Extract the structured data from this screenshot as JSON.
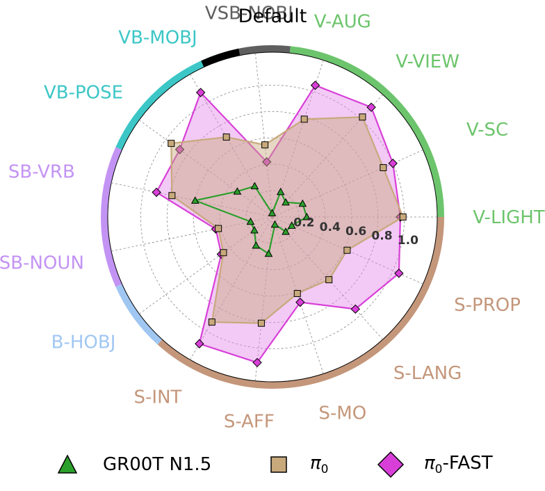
{
  "chart_data": {
    "type": "radar",
    "title": "Default",
    "categories": [
      "V-LIGHT",
      "V-SC",
      "V-VIEW",
      "V-AUG",
      "VSB-NOBJ",
      "VB-MOBJ",
      "VB-POSE",
      "SB-VRB",
      "SB-NOUN",
      "B-HOBJ",
      "S-INT",
      "S-AFF",
      "S-MO",
      "S-LANG",
      "S-PROP"
    ],
    "category_colors": [
      "#6cc46c",
      "#6cc46c",
      "#6cc46c",
      "#6cc46c",
      "#5f5f5f",
      "#3cc6c6",
      "#3cc6c6",
      "#c393f4",
      "#c393f4",
      "#a0c7f2",
      "#c4967a",
      "#c4967a",
      "#c4967a",
      "#c4967a",
      "#c4967a"
    ],
    "radial_ticks": [
      0.2,
      0.4,
      0.6,
      0.8,
      1.0
    ],
    "radial_tick_labels": [
      "0.2",
      "0.4",
      "0.6",
      "0.8",
      "1.0"
    ],
    "rlim": [
      0,
      1.25
    ],
    "grid": true,
    "legend_position": "bottom",
    "rim_segments": [
      {
        "group": "V",
        "color": "#6cc46c",
        "from_index": 0,
        "to_index": 3
      },
      {
        "group": "VSB",
        "color": "#5f5f5f",
        "from_index": 4,
        "to_index": 4
      },
      {
        "group": "VB",
        "color": "#3cc6c6",
        "from_index": 5,
        "to_index": 6
      },
      {
        "group": "SB",
        "color": "#c393f4",
        "from_index": 7,
        "to_index": 8
      },
      {
        "group": "B",
        "color": "#a0c7f2",
        "from_index": 9,
        "to_index": 9
      },
      {
        "group": "S",
        "color": "#c4967a",
        "from_index": 10,
        "to_index": 14
      },
      {
        "group": "default",
        "color": "#000000",
        "from_index": 4.5,
        "to_index": 4.5
      }
    ],
    "series": [
      {
        "name": "GR00T N1.5",
        "marker": "triangle",
        "line_color": "#2ca02c",
        "marker_color": "#2ca02c",
        "fill": false,
        "values": [
          0.26,
          0.25,
          0.15,
          0.2,
          0.03,
          0.27,
          0.33,
          0.6,
          0.17,
          0.17,
          0.25,
          0.28,
          0.06,
          0.15,
          0.16
        ]
      },
      {
        "name": "π0",
        "name_main": "π",
        "name_sub": "0",
        "marker": "square",
        "line_color": "#c8a97c",
        "marker_color": "#c8a97c",
        "fill": true,
        "fill_color": "#c8a97c",
        "values": [
          0.99,
          0.92,
          1.02,
          0.78,
          0.55,
          0.7,
          0.95,
          0.78,
          0.42,
          0.46,
          0.92,
          0.81,
          0.61,
          0.64,
          0.62
        ]
      },
      {
        "name": "π0-FAST",
        "name_main": "π",
        "name_sub": "0",
        "name_suffix": "-FAST",
        "marker": "diamond",
        "line_color": "#d83fd8",
        "marker_color": "#d83fd8",
        "fill": true,
        "fill_color": "#e28ae8",
        "values": [
          0.97,
          1.0,
          1.12,
          1.05,
          0.42,
          1.09,
          0.87,
          0.9,
          0.44,
          0.48,
          1.11,
          1.11,
          0.68,
          0.94,
          1.05
        ]
      }
    ]
  }
}
